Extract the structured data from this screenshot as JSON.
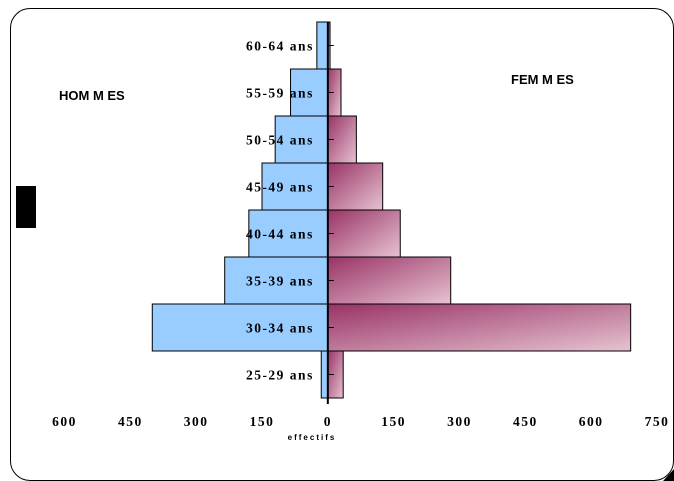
{
  "chart_data": {
    "type": "bar",
    "orientation": "horizontal-pyramid",
    "categories": [
      "25-29 ans",
      "30-34 ans",
      "35-39 ans",
      "40-44 ans",
      "45-49 ans",
      "50-54 ans",
      "55-59 ans",
      "60-64 ans"
    ],
    "series": [
      {
        "name": "HOM M ES",
        "side": "left",
        "values": [
          15,
          400,
          235,
          180,
          150,
          120,
          85,
          25
        ]
      },
      {
        "name": "FEM M ES",
        "side": "right",
        "values": [
          35,
          690,
          280,
          165,
          125,
          65,
          30,
          5
        ]
      }
    ],
    "xlabel": "effectifs",
    "x_ticks": [
      {
        "label": "600",
        "value": -600
      },
      {
        "label": "450",
        "value": -450
      },
      {
        "label": "300",
        "value": -300
      },
      {
        "label": "150",
        "value": -150
      },
      {
        "label": "0",
        "value": 0
      },
      {
        "label": "150",
        "value": 150
      },
      {
        "label": "300",
        "value": 300
      },
      {
        "label": "450",
        "value": 450
      },
      {
        "label": "600",
        "value": 600
      },
      {
        "label": "750",
        "value": 750
      }
    ],
    "xlim": [
      -690,
      750
    ],
    "grid": false,
    "colors": {
      "hommes_fill": "#99ccff",
      "femmes_dark": "#993366",
      "femmes_light": "#e6c3d1",
      "border": "#000000"
    }
  }
}
